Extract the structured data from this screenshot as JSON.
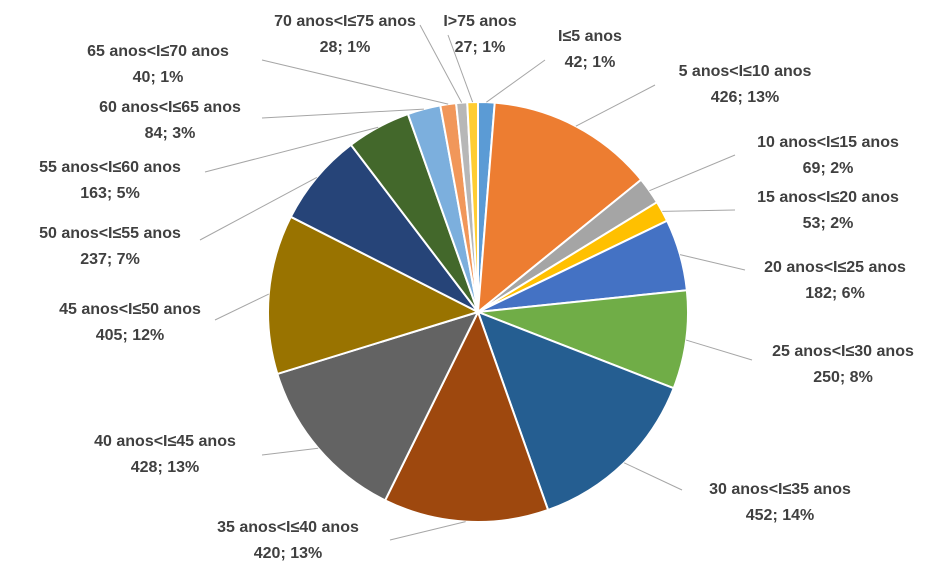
{
  "chart_data": {
    "type": "pie",
    "categories": [
      "I≤5 anos",
      "5 anos<I≤10 anos",
      "10 anos<I≤15 anos",
      "15 anos<I≤20 anos",
      "20 anos<I≤25 anos",
      "25 anos<I≤30 anos",
      "30 anos<I≤35 anos",
      "35 anos<I≤40 anos",
      "40 anos<I≤45 anos",
      "45 anos<I≤50 anos",
      "50 anos<I≤55 anos",
      "55 anos<I≤60 anos",
      "60 anos<I≤65 anos",
      "65 anos<I≤70 anos",
      "70 anos<I≤75 anos",
      "I>75 anos"
    ],
    "values": [
      42,
      426,
      69,
      53,
      182,
      250,
      452,
      420,
      428,
      405,
      237,
      163,
      84,
      40,
      28,
      27
    ],
    "value_labels": [
      "42; 1%",
      "426; 13%",
      "69; 2%",
      "53; 2%",
      "182; 6%",
      "250; 8%",
      "452; 14%",
      "420; 13%",
      "428; 13%",
      "405; 12%",
      "237; 7%",
      "163; 5%",
      "84; 3%",
      "40; 1%",
      "28; 1%",
      "27; 1%"
    ],
    "colors": [
      "#5b9bd5",
      "#ed7d31",
      "#a5a5a5",
      "#ffc000",
      "#4472c4",
      "#70ad47",
      "#255e91",
      "#9e480e",
      "#636363",
      "#997300",
      "#264478",
      "#43682b",
      "#7cafdd",
      "#f1975a",
      "#b7b7b7",
      "#ffcd33"
    ]
  }
}
